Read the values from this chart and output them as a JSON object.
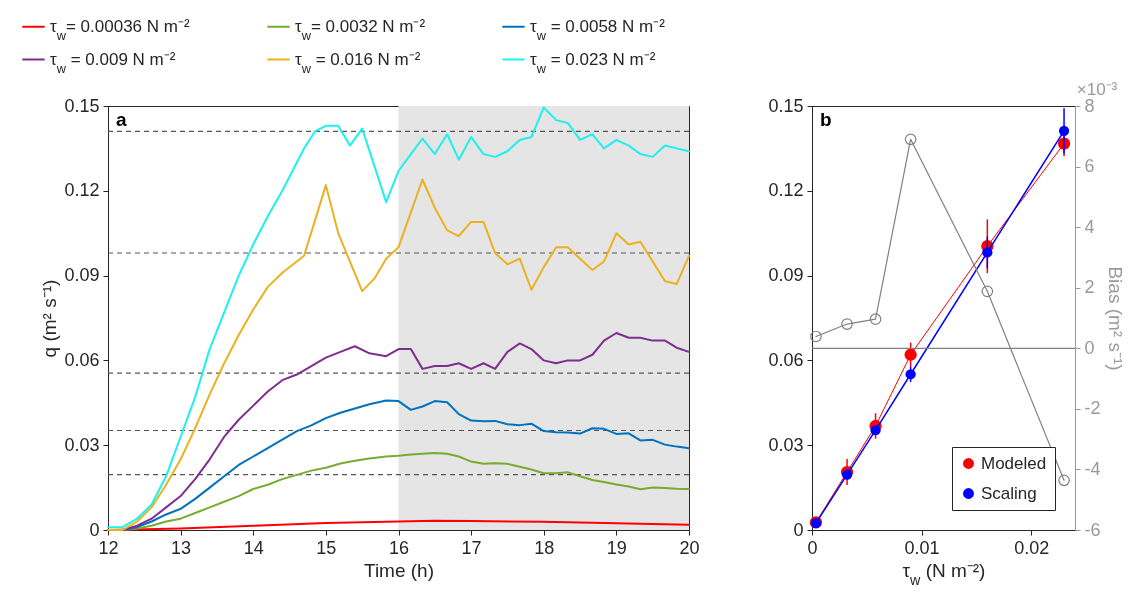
{
  "chart_data": [
    {
      "type": "line",
      "xlabel": "Time (h)",
      "ylabel": "q (m² s⁻¹)",
      "xlim": [
        12,
        20
      ],
      "xticks": [
        12,
        13,
        14,
        15,
        16,
        17,
        18,
        19,
        20
      ],
      "ylim": [
        0,
        0.15
      ],
      "yticks": [
        0,
        0.03,
        0.06,
        0.09,
        0.12,
        0.15
      ],
      "legend": "top",
      "annotations": [
        "a"
      ],
      "bands": [
        {
          "axis": "x",
          "from": 16,
          "to": 20,
          "color": "#e5e5e5"
        }
      ],
      "ref_lines": [
        {
          "axis": "y",
          "value": 0.141,
          "color": "#555555",
          "line_style": "dashed"
        },
        {
          "axis": "y",
          "value": 0.098,
          "color": "#555555",
          "line_style": "dashed"
        },
        {
          "axis": "y",
          "value": 0.0555,
          "color": "#555555",
          "line_style": "dashed"
        },
        {
          "axis": "y",
          "value": 0.0352,
          "color": "#555555",
          "line_style": "dashed"
        },
        {
          "axis": "y",
          "value": 0.0196,
          "color": "#555555",
          "line_style": "dashed"
        }
      ],
      "series": [
        {
          "name": "τ$_{w}$= 0.00036 N m⁻²",
          "color": "#ff0000",
          "x": [
            12,
            13,
            14,
            15,
            16,
            16.5,
            17,
            18,
            19,
            20
          ],
          "values": [
            0,
            0.0005,
            0.0015,
            0.0025,
            0.003,
            0.0033,
            0.0032,
            0.0029,
            0.0024,
            0.0019
          ]
        },
        {
          "name": "τ$_{w}$= 0.0032 N m⁻²",
          "color": "#77ac30",
          "x": [
            12,
            12.2,
            12.4,
            12.6,
            12.8,
            13,
            13.2,
            13.4,
            13.6,
            13.8,
            14,
            14.2,
            14.4,
            14.6,
            14.8,
            15,
            15.2,
            15.4,
            15.6,
            15.83,
            16,
            16.17,
            16.33,
            16.5,
            16.67,
            16.83,
            17,
            17.17,
            17.33,
            17.5,
            17.67,
            17.83,
            18,
            18.17,
            18.33,
            18.5,
            18.67,
            18.83,
            19,
            19.17,
            19.33,
            19.5,
            19.67,
            19.83,
            20
          ],
          "values": [
            0,
            0,
            0.0005,
            0.0015,
            0.003,
            0.004,
            0.006,
            0.008,
            0.01,
            0.012,
            0.0145,
            0.016,
            0.018,
            0.0195,
            0.021,
            0.022,
            0.0235,
            0.0245,
            0.0253,
            0.026,
            0.0263,
            0.0267,
            0.027,
            0.0272,
            0.027,
            0.026,
            0.0242,
            0.0234,
            0.0236,
            0.0234,
            0.0224,
            0.0214,
            0.0201,
            0.0201,
            0.0204,
            0.019,
            0.0177,
            0.017,
            0.0161,
            0.0154,
            0.0144,
            0.015,
            0.0149,
            0.0146,
            0.0145
          ]
        },
        {
          "name": "τ$_{w}$ = 0.0058 N m⁻²",
          "color": "#0072bd",
          "x": [
            12,
            12.2,
            12.4,
            12.6,
            12.8,
            13,
            13.2,
            13.4,
            13.6,
            13.8,
            14,
            14.2,
            14.4,
            14.6,
            14.8,
            15,
            15.2,
            15.4,
            15.6,
            15.83,
            16,
            16.17,
            16.33,
            16.5,
            16.67,
            16.83,
            17,
            17.17,
            17.33,
            17.5,
            17.67,
            17.83,
            18,
            18.17,
            18.33,
            18.5,
            18.67,
            18.83,
            19,
            19.17,
            19.33,
            19.5,
            19.67,
            19.83,
            20
          ],
          "values": [
            0,
            0,
            0.001,
            0.003,
            0.0055,
            0.0075,
            0.011,
            0.015,
            0.019,
            0.023,
            0.026,
            0.029,
            0.032,
            0.035,
            0.037,
            0.0396,
            0.0415,
            0.043,
            0.0445,
            0.0458,
            0.0456,
            0.0425,
            0.0437,
            0.0456,
            0.0452,
            0.041,
            0.0387,
            0.0385,
            0.0386,
            0.0374,
            0.0371,
            0.0376,
            0.035,
            0.0346,
            0.0345,
            0.0341,
            0.036,
            0.0358,
            0.034,
            0.0342,
            0.0317,
            0.0319,
            0.0302,
            0.0295,
            0.0289
          ]
        },
        {
          "name": "τ$_{w}$ = 0.009 N m⁻²",
          "color": "#7e2f8e",
          "x": [
            12,
            12.2,
            12.4,
            12.6,
            12.8,
            13,
            13.2,
            13.4,
            13.6,
            13.8,
            14,
            14.2,
            14.4,
            14.6,
            14.8,
            15,
            15.2,
            15.4,
            15.6,
            15.83,
            16,
            16.17,
            16.33,
            16.5,
            16.67,
            16.83,
            17,
            17.17,
            17.33,
            17.5,
            17.67,
            17.83,
            18,
            18.17,
            18.33,
            18.5,
            18.67,
            18.83,
            19,
            19.17,
            19.33,
            19.5,
            19.67,
            19.83,
            20
          ],
          "values": [
            0,
            0,
            0.0015,
            0.004,
            0.008,
            0.012,
            0.018,
            0.025,
            0.033,
            0.039,
            0.044,
            0.049,
            0.053,
            0.055,
            0.058,
            0.061,
            0.063,
            0.065,
            0.0625,
            0.0615,
            0.064,
            0.064,
            0.057,
            0.058,
            0.058,
            0.059,
            0.057,
            0.059,
            0.057,
            0.063,
            0.066,
            0.064,
            0.06,
            0.059,
            0.06,
            0.06,
            0.062,
            0.067,
            0.0697,
            0.068,
            0.068,
            0.067,
            0.067,
            0.0645,
            0.063
          ]
        },
        {
          "name": "τ$_{w}$ = 0.016 N m⁻²",
          "color": "#edb120",
          "x": [
            12,
            12.2,
            12.4,
            12.6,
            12.8,
            13,
            13.2,
            13.4,
            13.6,
            13.8,
            14,
            14.2,
            14.4,
            14.7,
            15,
            15.17,
            15.33,
            15.5,
            15.67,
            15.83,
            16,
            16.33,
            16.5,
            16.67,
            16.83,
            17,
            17.17,
            17.33,
            17.5,
            17.67,
            17.83,
            18,
            18.17,
            18.33,
            18.5,
            18.67,
            18.83,
            19,
            19.17,
            19.33,
            19.5,
            19.67,
            19.83,
            20
          ],
          "values": [
            0,
            0,
            0.003,
            0.008,
            0.016,
            0.025,
            0.036,
            0.048,
            0.059,
            0.069,
            0.078,
            0.086,
            0.091,
            0.097,
            0.122,
            0.105,
            0.095,
            0.0845,
            0.089,
            0.096,
            0.1,
            0.124,
            0.114,
            0.106,
            0.104,
            0.109,
            0.109,
            0.098,
            0.094,
            0.096,
            0.085,
            0.093,
            0.1,
            0.1,
            0.096,
            0.092,
            0.095,
            0.105,
            0.101,
            0.102,
            0.095,
            0.088,
            0.087,
            0.097
          ]
        },
        {
          "name": "τ$_{w}$ = 0.023 N m⁻²",
          "color": "#1ef0f0",
          "x": [
            12,
            12.2,
            12.4,
            12.6,
            12.8,
            13,
            13.2,
            13.4,
            13.6,
            13.8,
            14,
            14.2,
            14.4,
            14.6,
            14.7,
            14.85,
            15,
            15.17,
            15.33,
            15.5,
            15.83,
            16,
            16.17,
            16.33,
            16.5,
            16.67,
            16.83,
            17,
            17.17,
            17.33,
            17.5,
            17.67,
            17.83,
            18,
            18.17,
            18.33,
            18.5,
            18.67,
            18.83,
            19,
            19.17,
            19.33,
            19.5,
            19.67,
            19.83,
            20
          ],
          "values": [
            0.001,
            0.001,
            0.004,
            0.009,
            0.019,
            0.033,
            0.047,
            0.064,
            0.077,
            0.09,
            0.101,
            0.111,
            0.12,
            0.13,
            0.135,
            0.141,
            0.143,
            0.143,
            0.136,
            0.142,
            0.116,
            0.127,
            0.133,
            0.1385,
            0.133,
            0.14,
            0.131,
            0.139,
            0.133,
            0.132,
            0.134,
            0.138,
            0.139,
            0.1495,
            0.145,
            0.144,
            0.138,
            0.14,
            0.135,
            0.138,
            0.136,
            0.133,
            0.132,
            0.136,
            0.135,
            0.134
          ]
        }
      ]
    },
    {
      "type": "line",
      "xlabel": "τ$_{w}$ (N m⁻²)",
      "y2label": "Bias (m² s⁻¹)",
      "marker": "circle",
      "legend": "bottom right",
      "annotations": [
        "b",
        "×10⁻³"
      ],
      "x": [
        0.00036,
        0.0032,
        0.0058,
        0.009,
        0.016,
        0.023
      ],
      "xlim": [
        0,
        0.024
      ],
      "xticks": [
        0,
        0.01,
        0.02
      ],
      "ylim": [
        0,
        0.15
      ],
      "yticks": [
        0,
        0.03,
        0.06,
        0.09,
        0.12,
        0.15
      ],
      "y2lim": [
        -6,
        8
      ],
      "y2ticks": [
        -6,
        -4,
        -2,
        0,
        2,
        4,
        6,
        8
      ],
      "ref_lines": [
        {
          "axis": "y2",
          "value": 0,
          "color": "#808080"
        }
      ],
      "series": [
        {
          "name": "Modeled",
          "color": "#ff0000",
          "values": [
            0.0027,
            0.0205,
            0.0368,
            0.062,
            0.1004,
            0.1367
          ],
          "errors": [
            null,
            0.0046,
            0.0045,
            0.0043,
            0.0095,
            0.0045
          ]
        },
        {
          "name": "Scaling",
          "color": "#0000ff",
          "values": [
            0.0024,
            0.0196,
            0.0353,
            0.0551,
            0.0982,
            0.1412
          ],
          "errors": [
            null,
            null,
            null,
            0.0027,
            0.0056,
            0.008
          ]
        },
        {
          "color": "#808080",
          "axis": "y2",
          "values": [
            0.39,
            0.8,
            0.96,
            6.9,
            1.88,
            -4.36
          ]
        }
      ]
    }
  ]
}
